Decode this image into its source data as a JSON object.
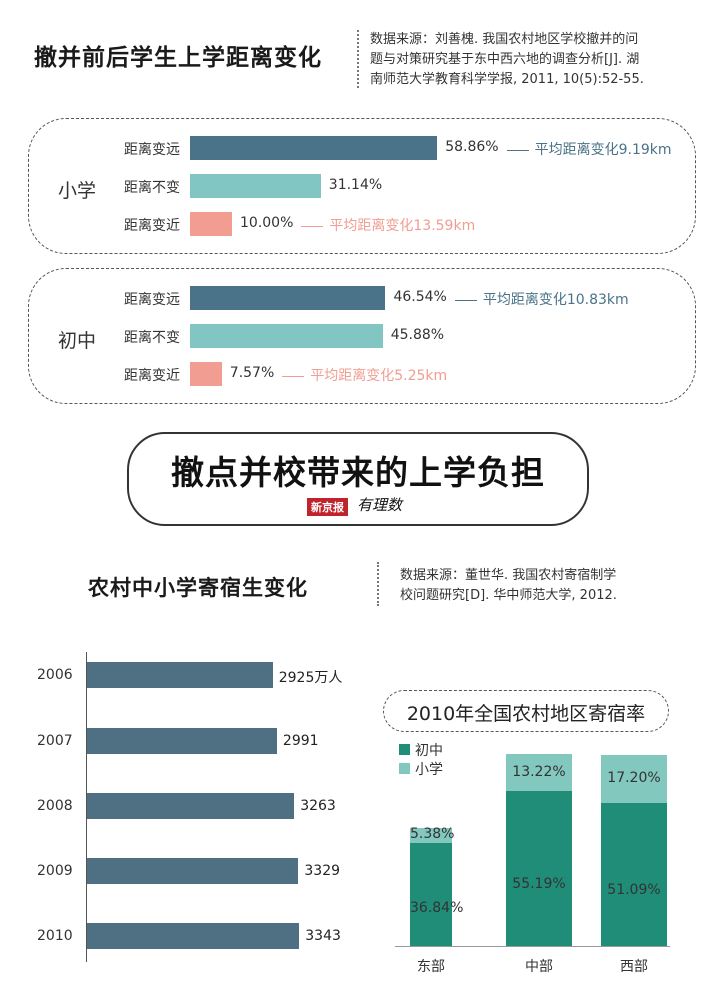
{
  "colors": {
    "dark_teal": "#4a7389",
    "light_teal": "#82c6c3",
    "salmon": "#f19d91",
    "bar_teal": "#4f7083",
    "stack_dark": "#1f8d78",
    "stack_light": "#82c8bf"
  },
  "section1": {
    "title": "撤并前后学生上学距离变化",
    "source_lines": [
      "数据来源：刘善槐. 我国农村地区学校撤并的问",
      "题与对策研究基于东中西六地的调查分析[J]. 湖",
      "南师范大学教育科学学报, 2011, 10(5):52-55."
    ]
  },
  "banner": {
    "title": "撤点并校带来的上学负担",
    "logo_box": "新京报",
    "logo_script": "有理数"
  },
  "section2": {
    "title": "农村中小学寄宿生变化",
    "source_lines": [
      "数据来源：董世华. 我国农村寄宿制学",
      "校问题研究[D]. 华中师范大学, 2012."
    ]
  },
  "chart_data": [
    {
      "type": "bar",
      "orientation": "horizontal",
      "groups": [
        {
          "name": "小学",
          "rows": [
            {
              "label": "距离变远",
              "value": 58.86,
              "display": "58.86%",
              "note": "平均距离变化9.19km",
              "color": "#4a7389"
            },
            {
              "label": "距离不变",
              "value": 31.14,
              "display": "31.14%",
              "note": "",
              "color": "#82c6c3"
            },
            {
              "label": "距离变近",
              "value": 10.0,
              "display": "10.00%",
              "note": "平均距离变化13.59km",
              "color": "#f19d91"
            }
          ]
        },
        {
          "name": "初中",
          "rows": [
            {
              "label": "距离变远",
              "value": 46.54,
              "display": "46.54%",
              "note": "平均距离变化10.83km",
              "color": "#4a7389"
            },
            {
              "label": "距离不变",
              "value": 45.88,
              "display": "45.88%",
              "note": "",
              "color": "#82c6c3"
            },
            {
              "label": "距离变近",
              "value": 7.57,
              "display": "7.57%",
              "note": "平均距离变化5.25km",
              "color": "#f19d91"
            }
          ]
        }
      ]
    },
    {
      "type": "bar",
      "orientation": "horizontal",
      "categories": [
        "2006",
        "2007",
        "2008",
        "2009",
        "2010"
      ],
      "values": [
        2925,
        2991,
        3263,
        3329,
        3343
      ],
      "value_labels": [
        "2925万人",
        "2991",
        "3263",
        "3329",
        "3343"
      ]
    },
    {
      "type": "bar",
      "stacked": true,
      "title": "2010年全国农村地区寄宿率",
      "categories": [
        "东部",
        "中部",
        "西部"
      ],
      "series": [
        {
          "name": "初中",
          "values": [
            36.84,
            55.19,
            51.09
          ],
          "labels": [
            "36.84%",
            "55.19%",
            "51.09%"
          ],
          "color": "#1f8d78"
        },
        {
          "name": "小学",
          "values": [
            5.38,
            13.22,
            17.2
          ],
          "labels": [
            "5.38%",
            "13.22%",
            "17.20%"
          ],
          "color": "#82c8bf"
        }
      ],
      "legend": "top-left"
    }
  ]
}
